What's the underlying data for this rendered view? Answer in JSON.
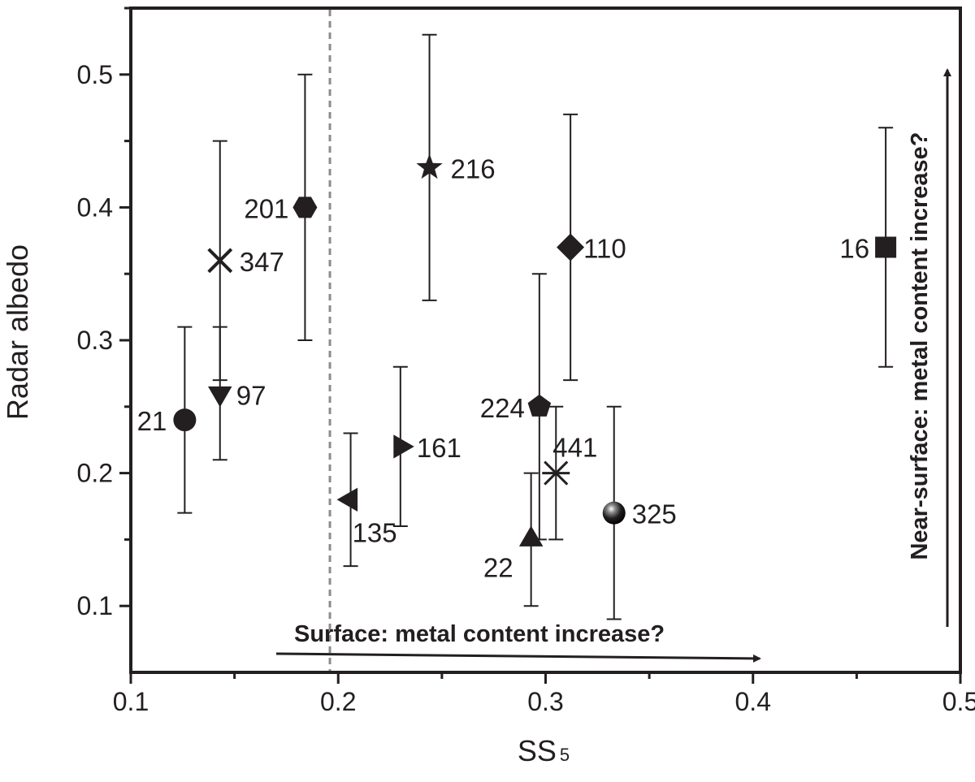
{
  "chart_data": {
    "type": "scatter",
    "title": "",
    "xlabel": "SS",
    "xlabel_sub": "5",
    "ylabel": "Radar albedo",
    "xlim": [
      0.1,
      0.5
    ],
    "ylim": [
      0.05,
      0.55
    ],
    "xticks": [
      0.1,
      0.2,
      0.3,
      0.4,
      0.5
    ],
    "xtick_labels": [
      "0.1",
      "0.2",
      "0.3",
      "0.4",
      "0.5"
    ],
    "yticks": [
      0.1,
      0.2,
      0.3,
      0.4,
      0.5
    ],
    "ytick_labels": [
      "0.1",
      "0.2",
      "0.3",
      "0.4",
      "0.5"
    ],
    "grid": false,
    "threshold_x": 0.196,
    "points": [
      {
        "label": "21",
        "x": 0.126,
        "y": 0.24,
        "y_low": 0.17,
        "y_high": 0.31,
        "marker": "circle"
      },
      {
        "label": "97",
        "x": 0.143,
        "y": 0.26,
        "y_low": 0.21,
        "y_high": 0.31,
        "marker": "triangle-down"
      },
      {
        "label": "347",
        "x": 0.143,
        "y": 0.36,
        "y_low": 0.27,
        "y_high": 0.45,
        "marker": "x"
      },
      {
        "label": "201",
        "x": 0.184,
        "y": 0.4,
        "y_low": 0.3,
        "y_high": 0.5,
        "marker": "hexagon"
      },
      {
        "label": "135",
        "x": 0.206,
        "y": 0.18,
        "y_low": 0.13,
        "y_high": 0.23,
        "marker": "triangle-left"
      },
      {
        "label": "161",
        "x": 0.23,
        "y": 0.22,
        "y_low": 0.16,
        "y_high": 0.28,
        "marker": "triangle-right"
      },
      {
        "label": "216",
        "x": 0.244,
        "y": 0.43,
        "y_low": 0.33,
        "y_high": 0.53,
        "marker": "star"
      },
      {
        "label": "22",
        "x": 0.293,
        "y": 0.15,
        "y_low": 0.1,
        "y_high": 0.2,
        "marker": "triangle-up"
      },
      {
        "label": "224",
        "x": 0.297,
        "y": 0.25,
        "y_low": 0.15,
        "y_high": 0.35,
        "marker": "pentagon"
      },
      {
        "label": "441",
        "x": 0.305,
        "y": 0.2,
        "y_low": 0.15,
        "y_high": 0.25,
        "marker": "asterisk"
      },
      {
        "label": "110",
        "x": 0.312,
        "y": 0.37,
        "y_low": 0.27,
        "y_high": 0.47,
        "marker": "diamond"
      },
      {
        "label": "325",
        "x": 0.333,
        "y": 0.17,
        "y_low": 0.09,
        "y_high": 0.25,
        "marker": "sphere"
      },
      {
        "label": "16",
        "x": 0.464,
        "y": 0.37,
        "y_low": 0.28,
        "y_high": 0.46,
        "marker": "square"
      }
    ],
    "annotations": {
      "surface": "Surface: metal content increase?",
      "near_surface": "Near-surface: metal content increase?"
    }
  }
}
